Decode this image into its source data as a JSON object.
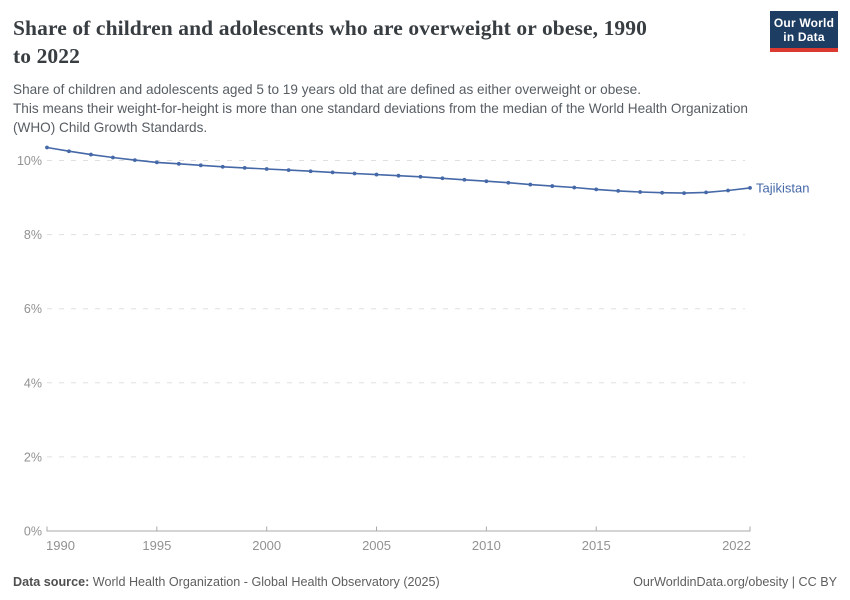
{
  "header": {
    "title": "Share of children and adolescents who are overweight or obese, 1990\nto 2022",
    "subtitle": "Share of children and adolescents aged 5 to 19 years old that are defined as either overweight or obese.\nThis means their weight-for-height is more than one standard deviations from the median of the World Health Organization\n(WHO) Child Growth Standards."
  },
  "logo": {
    "line1": "Our World",
    "line2": "in Data"
  },
  "chart_data": {
    "type": "line",
    "title": "Share of children and adolescents who are overweight or obese, 1990 to 2022",
    "unit": "%",
    "x": [
      1990,
      1991,
      1992,
      1993,
      1994,
      1995,
      1996,
      1997,
      1998,
      1999,
      2000,
      2001,
      2002,
      2003,
      2004,
      2005,
      2006,
      2007,
      2008,
      2009,
      2010,
      2011,
      2012,
      2013,
      2014,
      2015,
      2016,
      2017,
      2018,
      2019,
      2020,
      2021,
      2022
    ],
    "series": [
      {
        "name": "Tajikistan",
        "color": "#4568a7",
        "values": [
          10.35,
          10.25,
          10.16,
          10.08,
          10.01,
          9.95,
          9.91,
          9.87,
          9.83,
          9.8,
          9.77,
          9.74,
          9.71,
          9.68,
          9.65,
          9.62,
          9.59,
          9.56,
          9.52,
          9.48,
          9.44,
          9.4,
          9.35,
          9.31,
          9.27,
          9.22,
          9.18,
          9.15,
          9.13,
          9.12,
          9.14,
          9.19,
          9.26
        ]
      }
    ],
    "ylim": [
      0,
      10.5
    ],
    "yticks": [
      {
        "value": 0,
        "label": "0%"
      },
      {
        "value": 2,
        "label": "2%"
      },
      {
        "value": 4,
        "label": "4%"
      },
      {
        "value": 6,
        "label": "6%"
      },
      {
        "value": 8,
        "label": "8%"
      },
      {
        "value": 10,
        "label": "10%"
      }
    ],
    "xticks": [
      1990,
      1995,
      2000,
      2005,
      2010,
      2015,
      2022
    ],
    "grid": "horizontal-dashed",
    "legend_position": "end-of-line-label"
  },
  "colors": {
    "line": "#4568a7",
    "grid": "#e0e0e0",
    "axis": "#a8a8a8",
    "tick_label": "#929292",
    "entity_label": "#4568a7"
  },
  "footer": {
    "source_label": "Data source:",
    "source_text": "World Health Organization - Global Health Observatory (2025)",
    "right": "OurWorldinData.org/obesity | CC BY"
  }
}
